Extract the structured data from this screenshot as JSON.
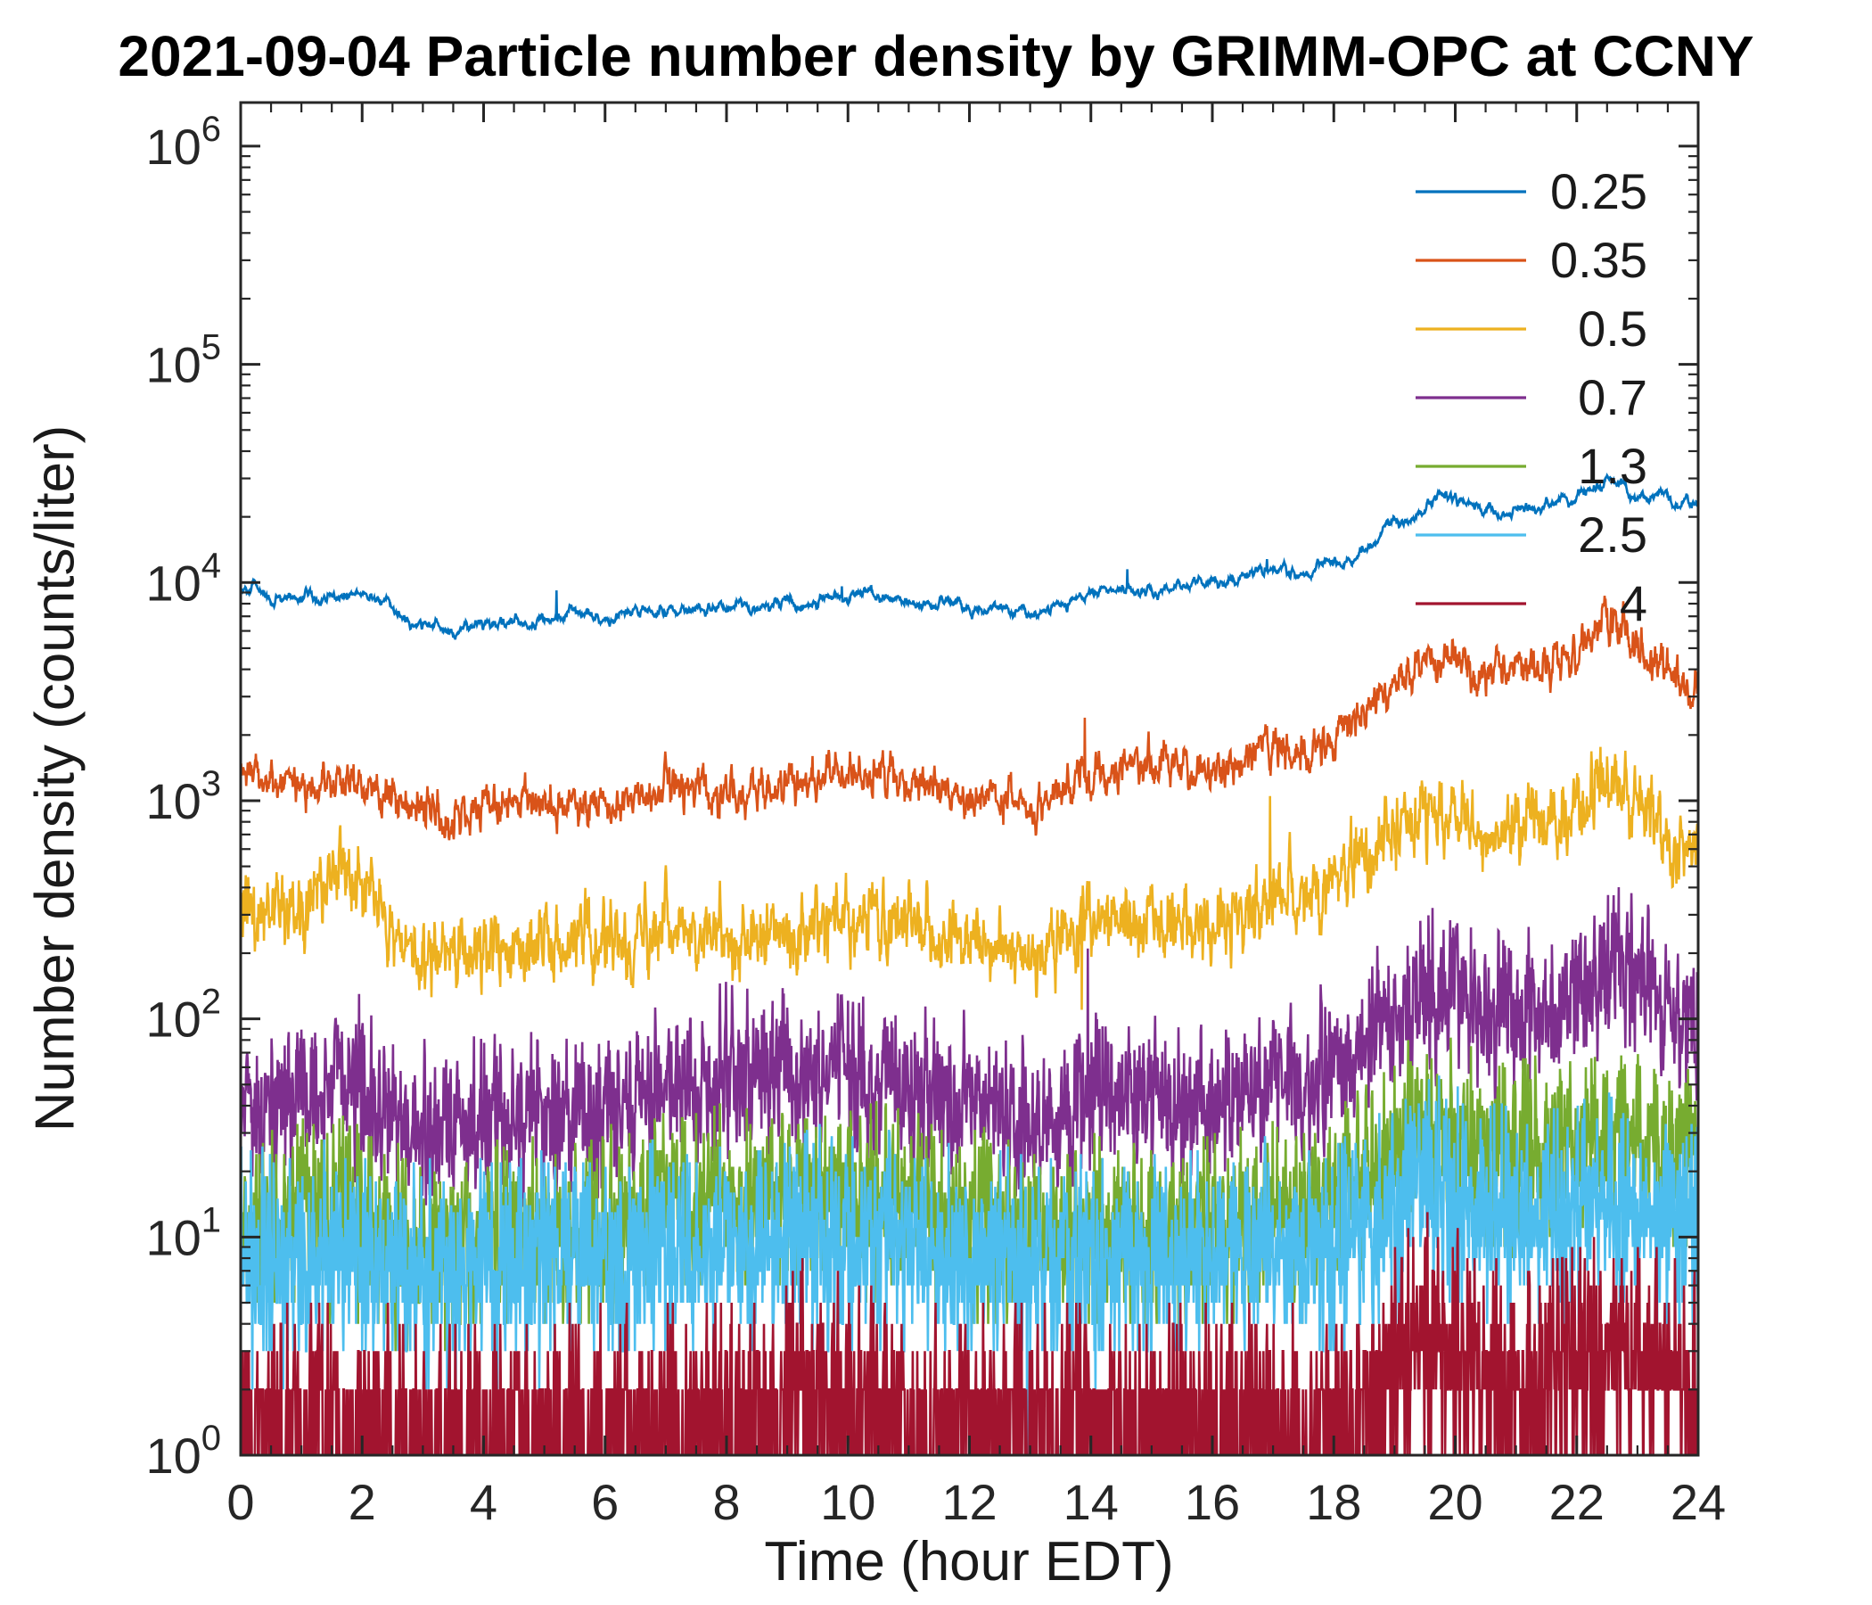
{
  "title": "2021-09-04 Particle number density by GRIMM-OPC at CCNY",
  "chart_data": {
    "type": "line",
    "title": "2021-09-04 Particle number density by GRIMM-OPC at CCNY",
    "xlabel": "Time (hour EDT)",
    "ylabel": "Number density (counts/liter)",
    "xlim": [
      0,
      24
    ],
    "x_ticks": [
      0,
      2,
      4,
      6,
      8,
      10,
      12,
      14,
      16,
      18,
      20,
      22,
      24
    ],
    "y_scale": "log10",
    "y_tick_exponents": [
      0,
      1,
      2,
      3,
      4,
      5,
      6
    ],
    "ylim_exponents": [
      0,
      6.2
    ],
    "grid": false,
    "legend_position": "top-right-inside",
    "axis_color": "#262626",
    "anchor_step_hours": 0.5,
    "series": [
      {
        "name": "0.25",
        "color": "#0072BD",
        "sigma": 0.022,
        "rho": 0.92,
        "integer": false,
        "anchors": [
          9500,
          9000,
          8500,
          8800,
          8800,
          7500,
          6300,
          6000,
          6300,
          6500,
          6800,
          7200,
          7000,
          7200,
          7800,
          7500,
          7300,
          7600,
          8000,
          8200,
          8800,
          8500,
          8000,
          7800,
          7500,
          7200,
          7000,
          7800,
          9000,
          9200,
          9500,
          9800,
          10000,
          10500,
          11500,
          11000,
          12000,
          14000,
          18000,
          22000,
          23000,
          22000,
          22000,
          23000,
          24000,
          30000,
          25000,
          23000,
          22000
        ]
      },
      {
        "name": "0.35",
        "color": "#D95319",
        "sigma": 0.05,
        "rho": 0.7,
        "integer": false,
        "anchors": [
          1300,
          1250,
          1200,
          1300,
          1200,
          1000,
          900,
          850,
          950,
          950,
          1000,
          1000,
          950,
          1000,
          1200,
          1100,
          1100,
          1150,
          1200,
          1250,
          1400,
          1300,
          1200,
          1100,
          1000,
          1000,
          950,
          1100,
          1300,
          1400,
          1500,
          1400,
          1400,
          1500,
          1800,
          1600,
          2000,
          2500,
          3500,
          4500,
          4500,
          3800,
          4200,
          4300,
          4500,
          7000,
          5000,
          3800,
          3200
        ]
      },
      {
        "name": "0.5",
        "color": "#EDB120",
        "sigma": 0.085,
        "rho": 0.6,
        "integer": false,
        "anchors": [
          300,
          290,
          330,
          480,
          400,
          250,
          200,
          190,
          220,
          210,
          230,
          230,
          220,
          230,
          280,
          250,
          240,
          230,
          250,
          260,
          300,
          310,
          280,
          250,
          230,
          220,
          200,
          220,
          260,
          280,
          300,
          280,
          280,
          300,
          400,
          350,
          450,
          550,
          750,
          900,
          900,
          700,
          800,
          820,
          900,
          1250,
          900,
          700,
          600
        ]
      },
      {
        "name": "0.7",
        "color": "#7E2F8E",
        "sigma": 0.17,
        "rho": 0.3,
        "integer": false,
        "anchors": [
          40,
          38,
          42,
          50,
          45,
          35,
          33,
          32,
          35,
          34,
          36,
          36,
          38,
          40,
          48,
          50,
          55,
          55,
          60,
          60,
          55,
          55,
          50,
          45,
          42,
          40,
          35,
          38,
          45,
          42,
          40,
          40,
          40,
          45,
          55,
          50,
          60,
          80,
          110,
          150,
          140,
          110,
          100,
          110,
          130,
          160,
          140,
          110,
          90
        ]
      },
      {
        "name": "1.3",
        "color": "#77AC30",
        "sigma": 0.2,
        "rho": 0.1,
        "integer": true,
        "anchors": [
          12,
          11,
          12,
          13,
          12,
          10,
          9,
          9,
          10,
          10,
          10,
          10,
          11,
          12,
          14,
          14,
          15,
          15,
          16,
          16,
          15,
          15,
          14,
          13,
          12,
          11,
          10,
          10,
          11,
          11,
          11,
          11,
          11,
          12,
          13,
          12,
          14,
          18,
          25,
          32,
          30,
          25,
          24,
          26,
          30,
          35,
          30,
          26,
          22
        ]
      },
      {
        "name": "2.5",
        "color": "#4DBEEE",
        "sigma": 0.23,
        "rho": 0.05,
        "integer": true,
        "anchors": [
          8,
          8,
          8,
          9,
          8,
          7,
          7,
          7,
          7,
          7,
          8,
          8,
          8,
          8,
          9,
          9,
          10,
          10,
          10,
          10,
          10,
          10,
          9,
          9,
          8,
          8,
          8,
          8,
          8,
          8,
          8,
          8,
          8,
          8,
          9,
          8,
          9,
          11,
          14,
          18,
          16,
          13,
          12,
          12,
          13,
          14,
          13,
          11,
          10
        ]
      },
      {
        "name": "4",
        "color": "#A2142F",
        "sigma": 0.26,
        "rho": 0,
        "integer": true,
        "anchors": [
          1.4,
          1.3,
          1.3,
          1.4,
          1.3,
          1.2,
          1.2,
          1.2,
          1.2,
          1.2,
          1.3,
          1.3,
          1.3,
          1.3,
          1.4,
          1.4,
          1.5,
          1.5,
          1.8,
          1.8,
          1.8,
          1.7,
          1.5,
          1.4,
          1.4,
          1.3,
          1.3,
          1.3,
          1.4,
          1.3,
          1.3,
          1.3,
          1.3,
          1.3,
          1.4,
          1.3,
          1.4,
          1.6,
          2.5,
          3.5,
          3.0,
          2.2,
          1.8,
          2.0,
          2.5,
          3.0,
          2.8,
          2.2,
          1.8
        ]
      }
    ],
    "spikes": [
      [
        0,
        5.2,
        9200
      ],
      [
        0,
        9.9,
        9600
      ],
      [
        0,
        14.6,
        11500
      ],
      [
        0,
        16.9,
        12800
      ],
      [
        1,
        7.0,
        1550
      ],
      [
        1,
        13.9,
        2400
      ],
      [
        1,
        15.2,
        1900
      ],
      [
        1,
        16.9,
        2200
      ],
      [
        2,
        13.85,
        110
      ],
      [
        2,
        16.95,
        1050
      ],
      [
        3,
        1.95,
        130
      ],
      [
        3,
        13.95,
        210
      ],
      [
        4,
        19.6,
        45
      ],
      [
        5,
        12.95,
        1
      ],
      [
        5,
        19.9,
        35
      ],
      [
        6,
        9.25,
        8
      ],
      [
        6,
        19.5,
        9
      ],
      [
        6,
        22.7,
        5
      ]
    ]
  }
}
